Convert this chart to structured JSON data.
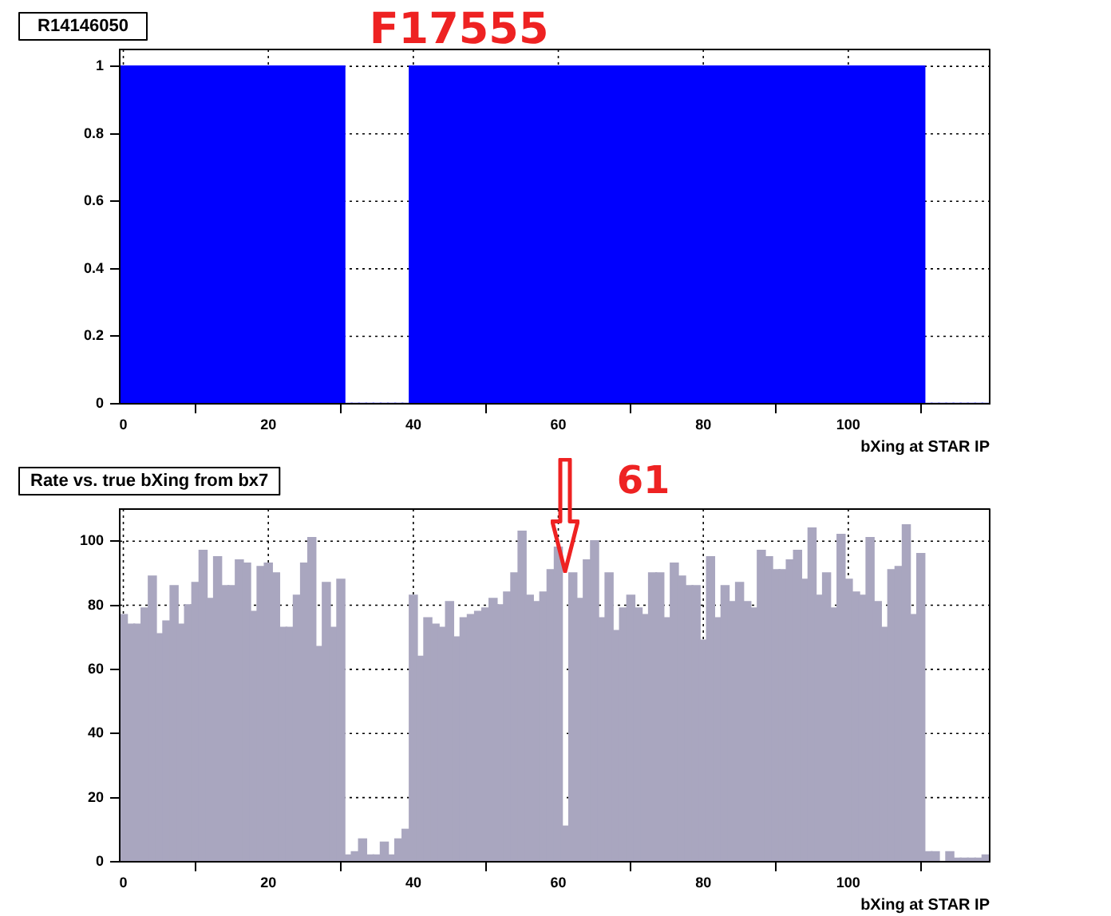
{
  "chart_data": [
    {
      "type": "histogram",
      "title": "R14146050",
      "xlabel": "bXing at STAR IP",
      "annotations": [
        "F17555"
      ],
      "bins": [
        -0.5,
        0.5,
        1.5,
        2.5,
        3.5,
        4.5,
        5.5,
        6.5,
        7.5,
        8.5,
        9.5,
        10.5,
        11.5,
        12.5,
        13.5,
        14.5,
        15.5,
        16.5,
        17.5,
        18.5,
        19.5,
        20.5,
        21.5,
        22.5,
        23.5,
        24.5,
        25.5,
        26.5,
        27.5,
        28.5,
        29.5,
        30.5,
        31.5,
        32.5,
        33.5,
        34.5,
        35.5,
        36.5,
        37.5,
        38.5,
        39.5,
        40.5,
        41.5,
        42.5,
        43.5,
        44.5,
        45.5,
        46.5,
        47.5,
        48.5,
        49.5,
        50.5,
        51.5,
        52.5,
        53.5,
        54.5,
        55.5,
        56.5,
        57.5,
        58.5,
        59.5,
        60.5,
        61.5,
        62.5,
        63.5,
        64.5,
        65.5,
        66.5,
        67.5,
        68.5,
        69.5,
        70.5,
        71.5,
        72.5,
        73.5,
        74.5,
        75.5,
        76.5,
        77.5,
        78.5,
        79.5,
        80.5,
        81.5,
        82.5,
        83.5,
        84.5,
        85.5,
        86.5,
        87.5,
        88.5,
        89.5,
        90.5,
        91.5,
        92.5,
        93.5,
        94.5,
        95.5,
        96.5,
        97.5,
        98.5,
        99.5,
        100.5,
        101.5,
        102.5,
        103.5,
        104.5,
        105.5,
        106.5,
        107.5,
        108.5,
        109.5,
        110.5,
        111.5,
        112.5,
        113.5,
        114.5,
        115.5,
        116.5,
        117.5,
        118.5,
        119.5
      ],
      "values": [
        1,
        1,
        1,
        1,
        1,
        1,
        1,
        1,
        1,
        1,
        1,
        1,
        1,
        1,
        1,
        1,
        1,
        1,
        1,
        1,
        1,
        1,
        1,
        1,
        1,
        1,
        1,
        1,
        1,
        1,
        1,
        0,
        0,
        0,
        0,
        0,
        0,
        0,
        0,
        0,
        1,
        1,
        1,
        1,
        1,
        1,
        1,
        1,
        1,
        1,
        1,
        1,
        1,
        1,
        1,
        1,
        1,
        1,
        1,
        1,
        1,
        1,
        1,
        1,
        1,
        1,
        1,
        1,
        1,
        1,
        1,
        1,
        1,
        1,
        1,
        1,
        1,
        1,
        1,
        1,
        1,
        1,
        1,
        1,
        1,
        1,
        1,
        1,
        1,
        1,
        1,
        1,
        1,
        1,
        1,
        1,
        1,
        1,
        1,
        1,
        1,
        1,
        1,
        1,
        1,
        1,
        1,
        1,
        1,
        1,
        1,
        0,
        0,
        0,
        0,
        0,
        0,
        0,
        0,
        0
      ],
      "color": "#0000ff",
      "xlim": [
        -0.5,
        119.5
      ],
      "ylim": [
        0,
        1.05
      ],
      "xticks": [
        0,
        20,
        40,
        60,
        80,
        100
      ],
      "yticks": [
        0,
        0.2,
        0.4,
        0.6,
        0.8,
        1
      ],
      "grid": true
    },
    {
      "type": "histogram",
      "title": "Rate vs. true bXing from bx7",
      "xlabel": "bXing at STAR IP",
      "annotations": [
        {
          "text": "61",
          "x": 61,
          "y": 90
        }
      ],
      "bins": [
        -0.5,
        0.5,
        1.5,
        2.5,
        3.5,
        4.5,
        5.5,
        6.5,
        7.5,
        8.5,
        9.5,
        10.5,
        11.5,
        12.5,
        13.5,
        14.5,
        15.5,
        16.5,
        17.5,
        18.5,
        19.5,
        20.5,
        21.5,
        22.5,
        23.5,
        24.5,
        25.5,
        26.5,
        27.5,
        28.5,
        29.5,
        30.5,
        31.5,
        32.5,
        33.5,
        34.5,
        35.5,
        36.5,
        37.5,
        38.5,
        39.5,
        40.5,
        41.5,
        42.5,
        43.5,
        44.5,
        45.5,
        46.5,
        47.5,
        48.5,
        49.5,
        50.5,
        51.5,
        52.5,
        53.5,
        54.5,
        55.5,
        56.5,
        57.5,
        58.5,
        59.5,
        60.5,
        61.5,
        62.5,
        63.5,
        64.5,
        65.5,
        66.5,
        67.5,
        68.5,
        69.5,
        70.5,
        71.5,
        72.5,
        73.5,
        74.5,
        75.5,
        76.5,
        77.5,
        78.5,
        79.5,
        80.5,
        81.5,
        82.5,
        83.5,
        84.5,
        85.5,
        86.5,
        87.5,
        88.5,
        89.5,
        90.5,
        91.5,
        92.5,
        93.5,
        94.5,
        95.5,
        96.5,
        97.5,
        98.5,
        99.5,
        100.5,
        101.5,
        102.5,
        103.5,
        104.5,
        105.5,
        106.5,
        107.5,
        108.5,
        109.5,
        110.5,
        111.5,
        112.5,
        113.5,
        114.5,
        115.5,
        116.5,
        117.5,
        118.5,
        119.5
      ],
      "values": [
        77,
        74,
        74,
        79,
        89,
        71,
        75,
        86,
        74,
        80,
        87,
        97,
        82,
        95,
        86,
        86,
        94,
        93,
        78,
        92,
        93,
        90,
        73,
        73,
        83,
        93,
        101,
        67,
        87,
        73,
        88,
        2,
        3,
        7,
        2,
        2,
        6,
        2,
        7,
        10,
        83,
        64,
        76,
        74,
        73,
        81,
        70,
        76,
        77,
        78,
        79,
        82,
        80,
        84,
        90,
        103,
        83,
        81,
        84,
        91,
        98,
        11,
        90,
        82,
        94,
        100,
        76,
        90,
        72,
        79,
        83,
        79,
        77,
        90,
        90,
        76,
        93,
        89,
        86,
        86,
        69,
        95,
        76,
        86,
        81,
        87,
        81,
        79,
        97,
        95,
        91,
        91,
        94,
        97,
        88,
        104,
        83,
        90,
        79,
        102,
        88,
        84,
        83,
        101,
        81,
        73,
        91,
        92,
        105,
        77,
        96,
        3,
        3,
        0,
        3,
        1,
        1,
        1,
        1,
        2
      ],
      "color": "#a9a6bf",
      "xlim": [
        -0.5,
        119.5
      ],
      "ylim": [
        0,
        110
      ],
      "xticks": [
        0,
        20,
        40,
        60,
        80,
        100
      ],
      "yticks": [
        0,
        20,
        40,
        60,
        80,
        100
      ],
      "grid": true
    }
  ]
}
